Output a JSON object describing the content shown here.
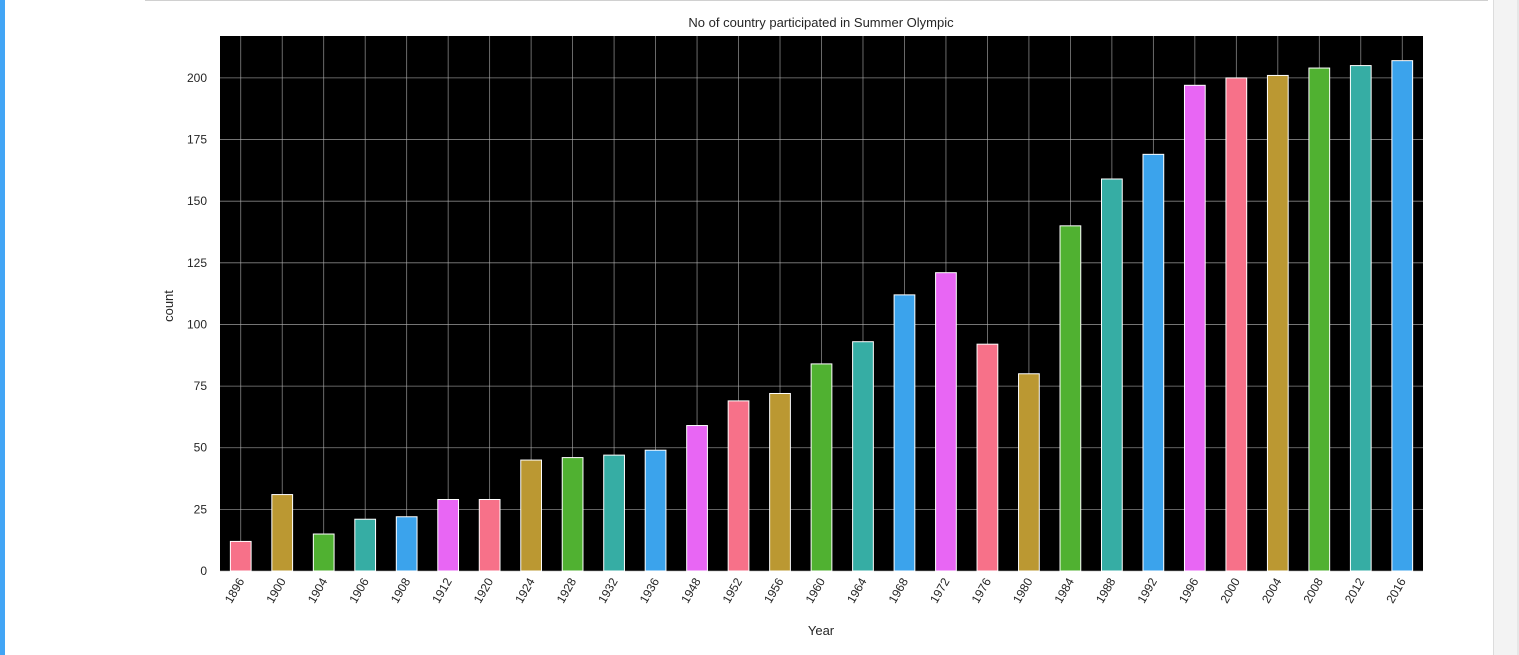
{
  "chart_data": {
    "type": "bar",
    "title": "No of country participated in Summer Olympic",
    "xlabel": "Year",
    "ylabel": "count",
    "ylim": [
      0,
      217
    ],
    "yticks": [
      0,
      25,
      50,
      75,
      100,
      125,
      150,
      175,
      200
    ],
    "grid": true,
    "categories": [
      "1896",
      "1900",
      "1904",
      "1906",
      "1908",
      "1912",
      "1920",
      "1924",
      "1928",
      "1932",
      "1936",
      "1948",
      "1952",
      "1956",
      "1960",
      "1964",
      "1968",
      "1972",
      "1976",
      "1980",
      "1984",
      "1988",
      "1992",
      "1996",
      "2000",
      "2004",
      "2008",
      "2012",
      "2016"
    ],
    "values": [
      12,
      31,
      15,
      21,
      22,
      29,
      29,
      45,
      46,
      47,
      49,
      59,
      69,
      72,
      84,
      93,
      112,
      121,
      92,
      80,
      140,
      159,
      169,
      197,
      200,
      201,
      204,
      205,
      207
    ],
    "colors": [
      "#f77189",
      "#bb9832",
      "#50b131",
      "#36ada4",
      "#3ba3ec",
      "#e866f4"
    ],
    "background": "#000000",
    "grid_color": "#b0b0b0"
  }
}
